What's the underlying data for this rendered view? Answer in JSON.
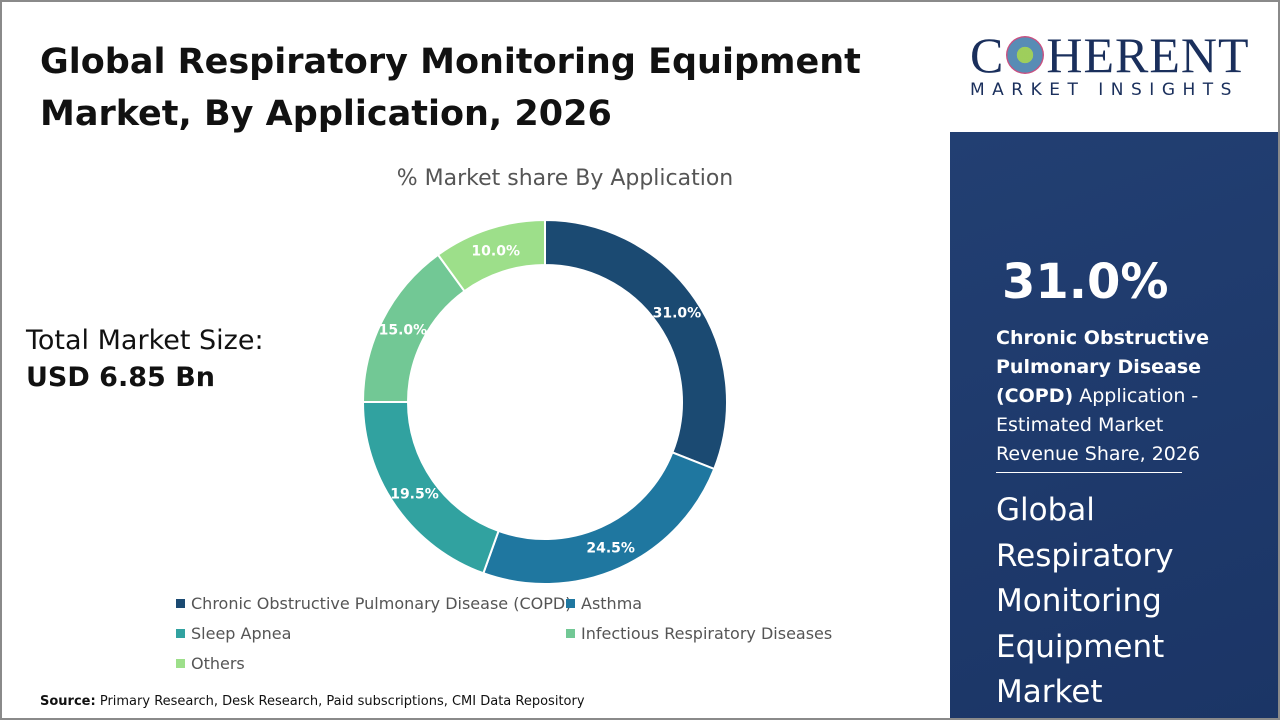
{
  "header": {
    "title": "Global  Respiratory Monitoring Equipment Market, By Application, 2026"
  },
  "summary": {
    "label": "Total Market Size:",
    "value": "USD 6.85 Bn"
  },
  "chart_data": {
    "type": "pie",
    "donut": true,
    "title": "% Market share By Application",
    "categories": [
      "Chronic Obstructive Pulmonary Disease (COPD)",
      "Asthma",
      "Sleep Apnea",
      "Infectious Respiratory Diseases",
      "Others"
    ],
    "values": [
      31.0,
      24.5,
      19.5,
      15.0,
      10.0
    ],
    "data_labels": [
      "31.0%",
      "24.5%",
      "19.5%",
      "15.0%",
      "10.0%"
    ],
    "colors": [
      "#1b4a72",
      "#1f77a0",
      "#31a2a0",
      "#72c895",
      "#9ddf8a"
    ],
    "legend_position": "bottom"
  },
  "source": {
    "label": "Source:",
    "text": "Primary Research, Desk Research, Paid subscriptions, CMI Data Repository"
  },
  "logo": {
    "line1": "COHERENT",
    "line2": "MARKET INSIGHTS"
  },
  "panel": {
    "highlight": "31.0%",
    "desc_bold": "Chronic Obstructive Pulmonary Disease (COPD)",
    "desc_rest": " Application - Estimated Market Revenue Share, 2026",
    "market_name": "Global Respiratory Monitoring Equipment Market",
    "bg_color": "#1f3c6e"
  }
}
